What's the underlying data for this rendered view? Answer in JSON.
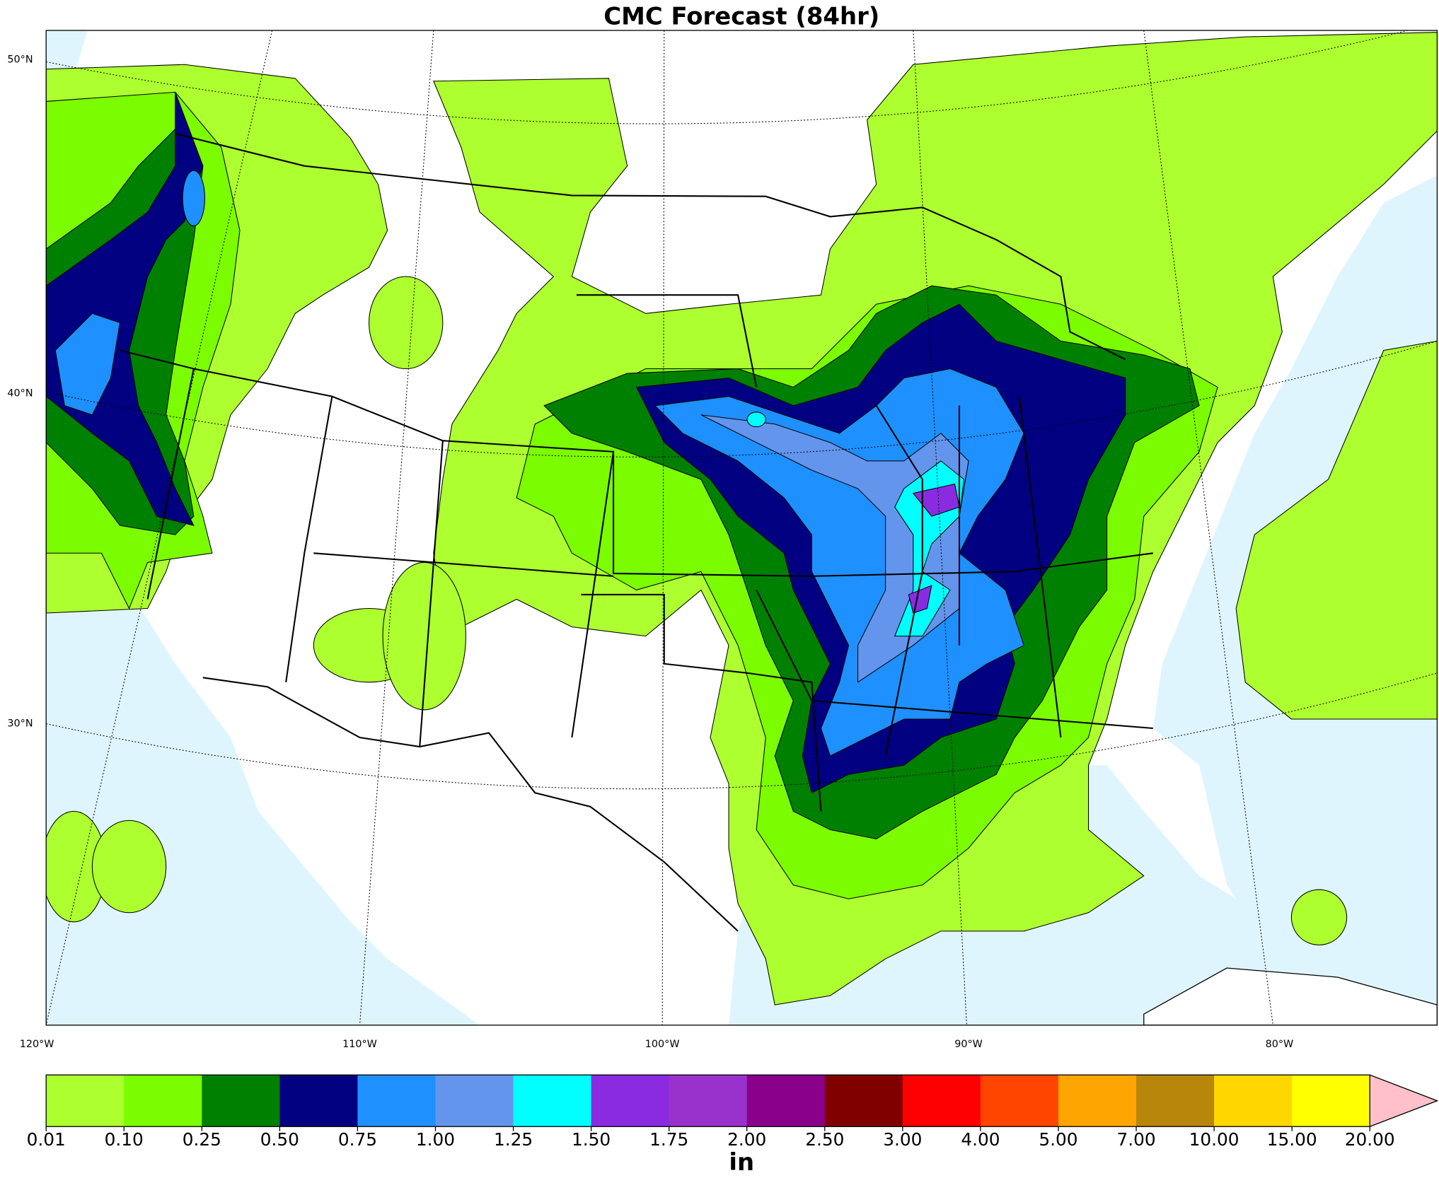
{
  "title": "CMC Forecast (84hr)",
  "map": {
    "lat_labels": [
      "50°N",
      "40°N",
      "30°N"
    ],
    "lon_labels": [
      "120°W",
      "110°W",
      "100°W",
      "90°W",
      "80°W"
    ]
  },
  "colorbar": {
    "unit": "in",
    "ticks": [
      {
        "value": 0.01,
        "label": "0.01"
      },
      {
        "value": 0.1,
        "label": "0.10"
      },
      {
        "value": 0.25,
        "label": "0.25"
      },
      {
        "value": 0.5,
        "label": "0.50"
      },
      {
        "value": 0.75,
        "label": "0.75"
      },
      {
        "value": 1,
        "label": "1.00"
      },
      {
        "value": 1.25,
        "label": "1.25"
      },
      {
        "value": 1.5,
        "label": "1.50"
      },
      {
        "value": 1.75,
        "label": "1.75"
      },
      {
        "value": 2,
        "label": "2.00"
      },
      {
        "value": 2.5,
        "label": "2.50"
      },
      {
        "value": 3,
        "label": "3.00"
      },
      {
        "value": 4,
        "label": "4.00"
      },
      {
        "value": 5,
        "label": "5.00"
      },
      {
        "value": 7,
        "label": "7.00"
      },
      {
        "value": 10,
        "label": "10.00"
      },
      {
        "value": 15,
        "label": "15.00"
      },
      {
        "value": 20,
        "label": "20.00"
      }
    ],
    "colors": [
      "#adff2f",
      "#7cfc00",
      "#008000",
      "#000080",
      "#1e90ff",
      "#6495ed",
      "#00ffff",
      "#8a2be2",
      "#9932cc",
      "#8b008b",
      "#800000",
      "#ff0000",
      "#ff4500",
      "#ffa500",
      "#b8860b",
      "#ffd700",
      "#ffff00"
    ],
    "extend_color": "#ffc0cb"
  }
}
